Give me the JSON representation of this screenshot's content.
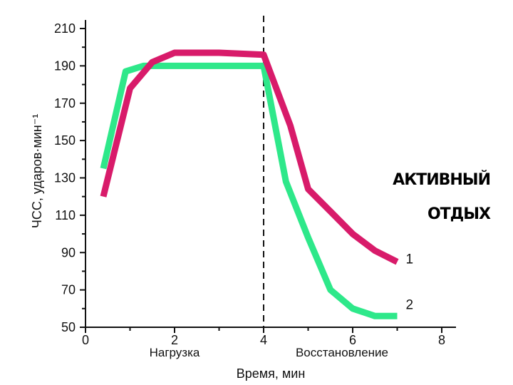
{
  "chart_data": {
    "type": "line",
    "title": "",
    "xlabel": "Время, мин",
    "ylabel": "ЧСС, ударов·мин⁻¹",
    "xlim": [
      0,
      8
    ],
    "ylim": [
      50,
      215
    ],
    "xticks": [
      0,
      2,
      4,
      6,
      8
    ],
    "yticks": [
      50,
      70,
      90,
      110,
      130,
      150,
      170,
      190,
      210
    ],
    "phase_labels": [
      {
        "text": "Нагрузка",
        "x": 2
      },
      {
        "text": "Восстановление",
        "x": 6
      }
    ],
    "divider_x": 4,
    "annotation_lines": [
      "АКТИВНЫЙ",
      "ОТДЫХ"
    ],
    "series": [
      {
        "name": "1",
        "color": "#d81b6a",
        "points": [
          [
            0.4,
            120
          ],
          [
            1.0,
            178
          ],
          [
            1.5,
            192
          ],
          [
            2.0,
            197
          ],
          [
            3.0,
            197
          ],
          [
            4.0,
            196
          ],
          [
            4.6,
            158
          ],
          [
            5.0,
            124
          ],
          [
            5.5,
            112
          ],
          [
            6.0,
            100
          ],
          [
            6.5,
            91
          ],
          [
            7.0,
            85
          ]
        ]
      },
      {
        "name": "2",
        "color": "#2ee88a",
        "points": [
          [
            0.4,
            135
          ],
          [
            0.9,
            187
          ],
          [
            1.3,
            190
          ],
          [
            2.0,
            190
          ],
          [
            3.0,
            190
          ],
          [
            4.0,
            190
          ],
          [
            4.5,
            128
          ],
          [
            5.0,
            98
          ],
          [
            5.5,
            70
          ],
          [
            6.0,
            60
          ],
          [
            6.5,
            56
          ],
          [
            7.0,
            56
          ]
        ]
      }
    ]
  }
}
